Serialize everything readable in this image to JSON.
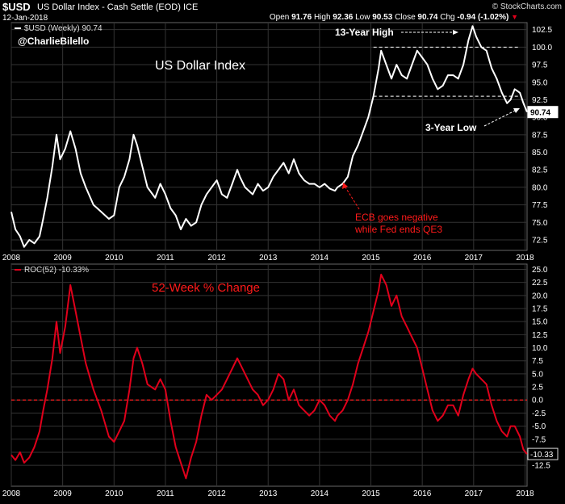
{
  "header": {
    "symbol": "$USD",
    "description": "US Dollar Index - Cash Settle (EOD) ICE",
    "date": "12-Jan-2018",
    "open_label": "Open",
    "open": "91.76",
    "high_label": "High",
    "high": "92.36",
    "low_label": "Low",
    "low": "90.53",
    "close_label": "Close",
    "close": "90.74",
    "chg_label": "Chg",
    "chg": "-0.94 (-1.02%)",
    "brand": "© StockCharts.com"
  },
  "colors": {
    "background": "#000000",
    "price": "#ffffff",
    "roc": "#e0001b",
    "grid": "#333333",
    "accent_red": "#ff1a1a"
  },
  "chart_data": [
    {
      "type": "line",
      "legend": "$USD (Weekly) 90.74",
      "title": "US Dollar Index",
      "watermark": "@CharlieBilello",
      "last_value": "90.74",
      "x_ticks": [
        "2008",
        "2009",
        "2010",
        "2011",
        "2012",
        "2013",
        "2014",
        "2015",
        "2016",
        "2017",
        "2018"
      ],
      "y_ticks": [
        "72.5",
        "75.0",
        "77.5",
        "80.0",
        "82.5",
        "85.0",
        "87.5",
        "90.0",
        "92.5",
        "95.0",
        "97.5",
        "100.0",
        "102.5"
      ],
      "ylim": [
        71,
        103.5
      ],
      "xlim": [
        2008.0,
        2018.04
      ],
      "series": [
        {
          "x": [
            2008.0,
            2008.08,
            2008.17,
            2008.25,
            2008.35,
            2008.45,
            2008.55,
            2008.62,
            2008.7,
            2008.8,
            2008.88,
            2008.95,
            2009.05,
            2009.15,
            2009.25,
            2009.35,
            2009.45,
            2009.6,
            2009.75,
            2009.9,
            2010.0,
            2010.1,
            2010.2,
            2010.3,
            2010.38,
            2010.45,
            2010.55,
            2010.65,
            2010.8,
            2010.9,
            2011.0,
            2011.1,
            2011.2,
            2011.3,
            2011.4,
            2011.5,
            2011.6,
            2011.7,
            2011.8,
            2011.9,
            2012.0,
            2012.1,
            2012.2,
            2012.3,
            2012.4,
            2012.45,
            2012.55,
            2012.7,
            2012.8,
            2012.9,
            2013.0,
            2013.1,
            2013.2,
            2013.3,
            2013.4,
            2013.5,
            2013.6,
            2013.7,
            2013.8,
            2013.9,
            2014.0,
            2014.1,
            2014.2,
            2014.3,
            2014.35,
            2014.45,
            2014.55,
            2014.65,
            2014.75,
            2014.85,
            2014.95,
            2015.05,
            2015.15,
            2015.2,
            2015.3,
            2015.4,
            2015.5,
            2015.6,
            2015.7,
            2015.8,
            2015.9,
            2016.0,
            2016.1,
            2016.2,
            2016.3,
            2016.4,
            2016.5,
            2016.6,
            2016.7,
            2016.8,
            2016.9,
            2016.98,
            2017.05,
            2017.15,
            2017.25,
            2017.35,
            2017.45,
            2017.55,
            2017.65,
            2017.72,
            2017.8,
            2017.9,
            2017.97,
            2018.04
          ],
          "y": [
            76.5,
            74.0,
            73.0,
            71.5,
            72.5,
            72.0,
            73.0,
            75.5,
            78.5,
            83.0,
            87.5,
            84.0,
            85.5,
            88.0,
            85.5,
            82.0,
            80.0,
            77.5,
            76.5,
            75.5,
            76.0,
            80.0,
            81.5,
            84.0,
            87.5,
            86.0,
            83.0,
            80.0,
            78.5,
            80.5,
            79.0,
            77.0,
            76.0,
            74.0,
            75.5,
            74.5,
            75.0,
            77.5,
            79.0,
            80.0,
            81.0,
            79.0,
            78.5,
            80.5,
            82.5,
            81.5,
            80.0,
            79.0,
            80.5,
            79.5,
            80.0,
            81.5,
            82.5,
            83.5,
            82.0,
            84.0,
            82.0,
            81.0,
            80.5,
            80.5,
            80.0,
            80.5,
            79.8,
            79.5,
            80.0,
            80.5,
            81.5,
            84.5,
            86.0,
            88.0,
            90.0,
            93.0,
            97.0,
            99.5,
            97.5,
            95.5,
            97.5,
            96.0,
            95.5,
            97.5,
            99.5,
            98.5,
            97.5,
            95.5,
            94.0,
            94.5,
            96.0,
            96.0,
            95.5,
            97.5,
            101.0,
            103.0,
            101.5,
            100.0,
            99.5,
            97.0,
            95.5,
            93.5,
            92.0,
            92.5,
            94.0,
            93.5,
            92.0,
            90.74
          ]
        }
      ]
    },
    {
      "type": "line",
      "legend": "ROC(52) -10.33%",
      "title": "52-Week % Change",
      "last_value": "-10.33",
      "x_ticks": [
        "2008",
        "2009",
        "2010",
        "2011",
        "2012",
        "2013",
        "2014",
        "2015",
        "2016",
        "2017",
        "2018"
      ],
      "y_ticks": [
        "-12.5",
        "-10.0",
        "-7.5",
        "-5.0",
        "-2.5",
        "0.0",
        "2.5",
        "5.0",
        "7.5",
        "10.0",
        "12.5",
        "15.0",
        "17.5",
        "20.0",
        "22.5",
        "25.0"
      ],
      "ylim": [
        -16.5,
        26
      ],
      "xlim": [
        2008.0,
        2018.04
      ],
      "reference_line": 0,
      "series": [
        {
          "x": [
            2008.0,
            2008.08,
            2008.17,
            2008.25,
            2008.35,
            2008.45,
            2008.55,
            2008.62,
            2008.7,
            2008.8,
            2008.88,
            2008.95,
            2009.05,
            2009.15,
            2009.25,
            2009.35,
            2009.45,
            2009.6,
            2009.75,
            2009.9,
            2010.0,
            2010.1,
            2010.2,
            2010.3,
            2010.38,
            2010.45,
            2010.55,
            2010.65,
            2010.8,
            2010.9,
            2011.0,
            2011.1,
            2011.2,
            2011.3,
            2011.4,
            2011.5,
            2011.6,
            2011.7,
            2011.8,
            2011.9,
            2012.0,
            2012.1,
            2012.2,
            2012.3,
            2012.4,
            2012.45,
            2012.55,
            2012.7,
            2012.8,
            2012.9,
            2013.0,
            2013.1,
            2013.2,
            2013.3,
            2013.4,
            2013.5,
            2013.6,
            2013.7,
            2013.8,
            2013.9,
            2014.0,
            2014.1,
            2014.2,
            2014.3,
            2014.35,
            2014.45,
            2014.55,
            2014.65,
            2014.75,
            2014.85,
            2014.95,
            2015.05,
            2015.15,
            2015.2,
            2015.3,
            2015.4,
            2015.5,
            2015.6,
            2015.7,
            2015.8,
            2015.9,
            2016.0,
            2016.1,
            2016.2,
            2016.3,
            2016.4,
            2016.5,
            2016.6,
            2016.7,
            2016.8,
            2016.9,
            2016.98,
            2017.05,
            2017.15,
            2017.25,
            2017.35,
            2017.45,
            2017.55,
            2017.65,
            2017.72,
            2017.8,
            2017.9,
            2017.97,
            2018.04
          ],
          "y": [
            -10.5,
            -11.5,
            -10.0,
            -12.0,
            -11.0,
            -9.0,
            -6.0,
            -2.0,
            2.0,
            8.0,
            15.0,
            9.0,
            14.0,
            22.0,
            17.0,
            12.0,
            7.0,
            2.0,
            -2.0,
            -7.0,
            -8.0,
            -6.0,
            -4.0,
            2.0,
            8.0,
            10.0,
            7.0,
            3.0,
            2.0,
            4.0,
            2.0,
            -4.0,
            -9.0,
            -12.0,
            -15.0,
            -11.0,
            -8.0,
            -3.0,
            1.0,
            0.0,
            1.0,
            2.0,
            4.0,
            6.0,
            8.0,
            7.0,
            5.0,
            2.0,
            1.0,
            -1.0,
            0.0,
            2.0,
            5.0,
            4.0,
            0.0,
            2.0,
            -1.0,
            -2.0,
            -3.0,
            -2.0,
            0.0,
            -1.0,
            -3.0,
            -4.0,
            -3.0,
            -2.0,
            0.0,
            3.0,
            7.0,
            10.0,
            13.0,
            17.0,
            21.0,
            24.0,
            22.0,
            18.0,
            20.0,
            16.0,
            14.0,
            12.0,
            10.0,
            6.0,
            2.0,
            -2.0,
            -4.0,
            -3.0,
            -1.0,
            -1.0,
            -3.0,
            1.0,
            4.0,
            6.0,
            5.0,
            4.0,
            3.0,
            -1.0,
            -4.0,
            -6.0,
            -7.0,
            -5.0,
            -5.0,
            -7.0,
            -9.5,
            -10.33
          ]
        }
      ]
    }
  ],
  "annotations": {
    "high_label": "13-Year High",
    "low_label": "3-Year Low",
    "ecb_line1": "ECB goes negative",
    "ecb_line2": "while Fed ends QE3"
  }
}
